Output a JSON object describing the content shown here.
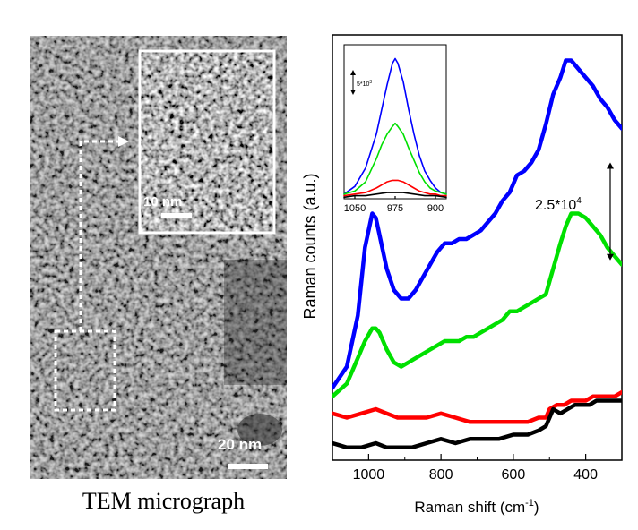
{
  "tem_panel": {
    "caption": "TEM micrograph",
    "inset_scale_label": "10 nm",
    "main_scale_label": "20 nm"
  },
  "chart_data": {
    "type": "line",
    "title": "",
    "xlabel": "Raman shift (cm",
    "xlabel_sup": "-1",
    "xlabel_close": ")",
    "ylabel": "Raman counts (a.u.)",
    "xlim": [
      1100,
      300
    ],
    "x_reversed": true,
    "ylim": [
      0,
      100
    ],
    "x_ticks": [
      {
        "value": 1000,
        "label": "1000"
      },
      {
        "value": 800,
        "label": "800"
      },
      {
        "value": 600,
        "label": "600"
      },
      {
        "value": 400,
        "label": "400"
      }
    ],
    "scale_annotation": {
      "base": "2.5*10",
      "exp": "4",
      "y_from": 70,
      "y_to": 47
    },
    "series": [
      {
        "color": "#0000ff",
        "x": [
          1100,
          1060,
          1030,
          1010,
          990,
          980,
          970,
          950,
          930,
          910,
          890,
          870,
          850,
          830,
          810,
          790,
          770,
          750,
          730,
          710,
          690,
          670,
          650,
          630,
          610,
          600,
          590,
          570,
          550,
          530,
          510,
          490,
          470,
          455,
          440,
          420,
          400,
          380,
          360,
          340,
          320,
          300
        ],
        "y": [
          17,
          22,
          34,
          50,
          58,
          57,
          53,
          45,
          40,
          38,
          38,
          40,
          43,
          46,
          49,
          51,
          51,
          52,
          52,
          53,
          54,
          56,
          58,
          61,
          63,
          65,
          67,
          68,
          70,
          73,
          79,
          86,
          90,
          94,
          94,
          92,
          90,
          88,
          85,
          83,
          80,
          78
        ]
      },
      {
        "color": "#00e000",
        "x": [
          1100,
          1060,
          1030,
          1010,
          990,
          980,
          970,
          950,
          930,
          910,
          890,
          870,
          850,
          830,
          810,
          790,
          770,
          750,
          730,
          710,
          690,
          670,
          650,
          630,
          610,
          590,
          570,
          550,
          530,
          510,
          490,
          470,
          455,
          440,
          420,
          400,
          380,
          360,
          340,
          320,
          300
        ],
        "y": [
          15,
          18,
          24,
          28,
          31,
          31,
          30,
          26,
          23,
          22,
          23,
          24,
          25,
          26,
          27,
          28,
          28,
          28,
          29,
          29,
          30,
          31,
          32,
          33,
          35,
          35,
          36,
          37,
          38,
          39,
          45,
          51,
          55,
          58,
          58,
          57,
          55,
          53,
          50,
          48,
          46
        ]
      },
      {
        "color": "#ff0000",
        "x": [
          1100,
          1060,
          1020,
          980,
          950,
          920,
          880,
          840,
          800,
          760,
          720,
          680,
          640,
          600,
          560,
          530,
          510,
          500,
          480,
          460,
          440,
          420,
          400,
          380,
          360,
          340,
          320,
          300
        ],
        "y": [
          11,
          10,
          11,
          12,
          11,
          10,
          10,
          10,
          11,
          10,
          9,
          9,
          9,
          9,
          9,
          10,
          10,
          12,
          13,
          13,
          14,
          14,
          14,
          15,
          15,
          15,
          15,
          16
        ]
      },
      {
        "color": "#000000",
        "x": [
          1100,
          1060,
          1020,
          980,
          950,
          920,
          880,
          840,
          800,
          760,
          720,
          680,
          640,
          600,
          560,
          530,
          510,
          500,
          490,
          470,
          450,
          430,
          410,
          390,
          370,
          350,
          330,
          300
        ],
        "y": [
          4,
          3,
          3,
          4,
          3,
          3,
          3,
          4,
          5,
          4,
          5,
          5,
          5,
          6,
          6,
          7,
          8,
          10,
          12,
          11,
          12,
          13,
          13,
          13,
          14,
          14,
          14,
          14
        ]
      }
    ],
    "inset": {
      "type": "line",
      "xlim": [
        1070,
        880
      ],
      "x_reversed": true,
      "ylim": [
        0,
        100
      ],
      "x_ticks": [
        {
          "value": 1050,
          "label": "1050"
        },
        {
          "value": 975,
          "label": "975"
        },
        {
          "value": 900,
          "label": "900"
        }
      ],
      "scale_label_base": "5*10",
      "scale_label_exp": "3",
      "series": [
        {
          "color": "#0000ff",
          "x": [
            1070,
            1050,
            1030,
            1010,
            1000,
            990,
            980,
            975,
            970,
            960,
            950,
            940,
            930,
            920,
            910,
            900,
            890,
            880
          ],
          "y": [
            3,
            8,
            20,
            42,
            58,
            74,
            88,
            91,
            88,
            76,
            58,
            42,
            28,
            18,
            12,
            7,
            4,
            3
          ]
        },
        {
          "color": "#00e000",
          "x": [
            1070,
            1050,
            1030,
            1010,
            1000,
            990,
            980,
            975,
            970,
            960,
            950,
            940,
            930,
            920,
            910,
            900,
            890,
            880
          ],
          "y": [
            3,
            5,
            11,
            26,
            35,
            42,
            47,
            49,
            47,
            42,
            33,
            25,
            17,
            11,
            7,
            5,
            4,
            3
          ]
        },
        {
          "color": "#ff0000",
          "x": [
            1070,
            1050,
            1030,
            1010,
            990,
            980,
            975,
            970,
            960,
            950,
            940,
            930,
            920,
            910,
            900,
            890,
            880
          ],
          "y": [
            2,
            3,
            4,
            7,
            11,
            12,
            12,
            12,
            11,
            9,
            7,
            5,
            4,
            3,
            3,
            2,
            2
          ]
        },
        {
          "color": "#000000",
          "x": [
            1070,
            1050,
            1030,
            1010,
            990,
            975,
            960,
            940,
            920,
            900,
            880
          ],
          "y": [
            1,
            2,
            2,
            3,
            4,
            4,
            4,
            3,
            2,
            2,
            1
          ]
        }
      ]
    }
  }
}
